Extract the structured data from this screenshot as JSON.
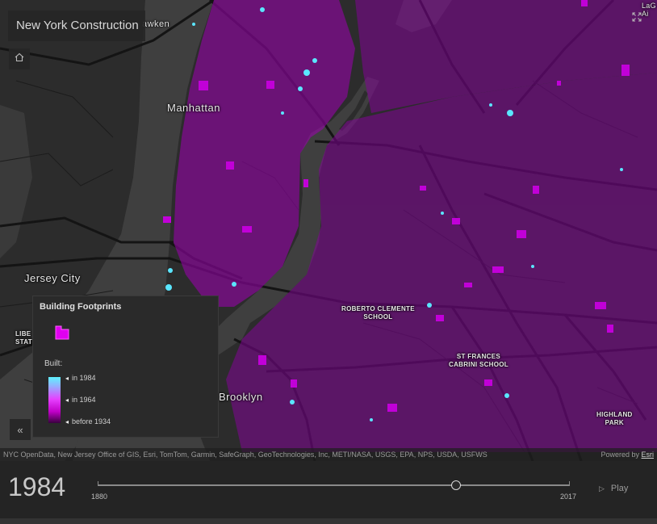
{
  "app": {
    "title": "New York Construction"
  },
  "map": {
    "labels": {
      "weehawken": "awken",
      "manhattan": "Manhattan",
      "jersey_city": "Jersey City",
      "brooklyn": "Brooklyn",
      "liberty_state": "LIBE\nSTATE",
      "roberto_clemente": "ROBERTO CLEMENTE\nSCHOOL",
      "st_frances": "ST FRANCES\nCABRINI SCHOOL",
      "highland_park": "HIGHLAND\nPARK",
      "laguardia": "LaG\nAi"
    },
    "colors": {
      "land": "#2b2b2b",
      "water": "#3d3d3d",
      "road": "#151515",
      "old_building": "#b400c8",
      "new_building": "#56e8ff"
    }
  },
  "legend": {
    "title": "Building Footprints",
    "built_label": "Built:",
    "ramp": [
      "in 1984",
      "in 1964",
      "before 1934"
    ]
  },
  "attribution": {
    "sources": "NYC OpenData, New Jersey Office of GIS, Esri, TomTom, Garmin, SafeGraph, GeoTechnologies, Inc, METI/NASA, USGS, EPA, NPS, USDA, USFWS",
    "powered_by": "Powered by ",
    "esri": "Esri"
  },
  "timeslider": {
    "current_year": "1984",
    "min": "1880",
    "max": "2017",
    "value_fraction": 0.759,
    "play_label": "Play"
  },
  "icons": {
    "home": "home-icon",
    "fullscreen": "fullscreen-icon",
    "collapse": "double-chevron-left-icon",
    "play": "play-icon"
  }
}
